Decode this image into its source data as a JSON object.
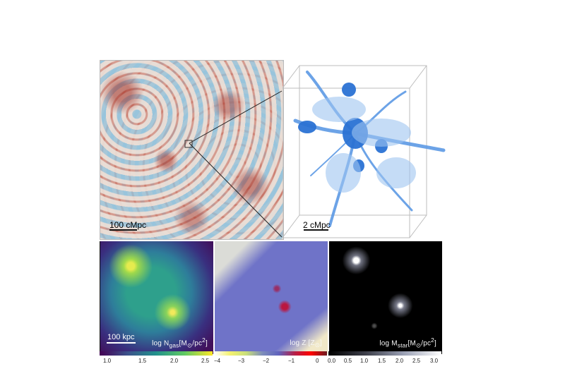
{
  "left_panel": {
    "scale_label": "100 cMpc"
  },
  "zoom_panel": {
    "scale_label": "2 cMpc"
  },
  "maps": [
    {
      "name": "gas",
      "label": "log N",
      "sub": "gas",
      "unit": "[M",
      "unitsub": "⊙",
      "unitend": "/pc",
      "sup": "2",
      "close": "]"
    },
    {
      "name": "metallicity",
      "label": "log Z [Z",
      "unitsub": "⊙",
      "close": "]"
    },
    {
      "name": "stellar",
      "label": "log M",
      "sub": "star",
      "unit": "[M",
      "unitsub": "⊙",
      "unitend": "/pc",
      "sup": "2",
      "close": "]"
    }
  ],
  "bottom_scale_label": "100 kpc",
  "colorbars": [
    {
      "ticks": [
        "1.0",
        "1.5",
        "2.0",
        "2.5"
      ]
    },
    {
      "ticks": [
        "−4",
        "−3",
        "−2",
        "−1",
        "0"
      ]
    },
    {
      "ticks": [
        "0.0",
        "0.5",
        "1.0",
        "1.5",
        "2.0",
        "2.5",
        "3.0"
      ]
    }
  ]
}
